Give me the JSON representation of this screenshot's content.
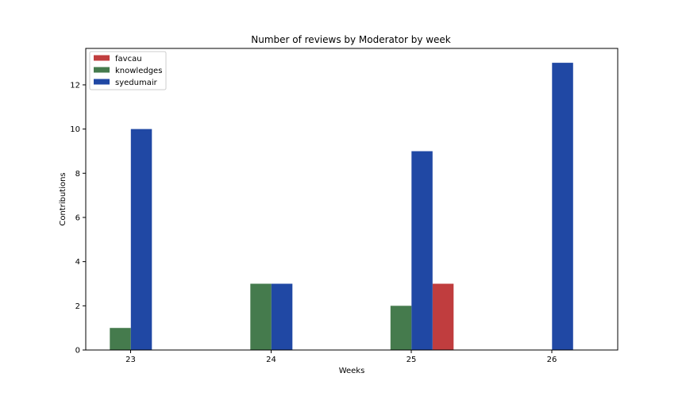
{
  "chart_data": {
    "type": "bar",
    "title": "Number of reviews by Moderator by week",
    "xlabel": "Weeks",
    "ylabel": "Contributions",
    "categories": [
      "23",
      "24",
      "25",
      "26"
    ],
    "series": [
      {
        "name": "favcau",
        "color": "#c03d3e",
        "values": [
          0,
          0,
          3,
          0
        ]
      },
      {
        "name": "knowledges",
        "color": "#457b4d",
        "values": [
          1,
          3,
          2,
          0
        ]
      },
      {
        "name": "syedumair",
        "color": "#2048a4",
        "values": [
          10,
          3,
          9,
          13
        ]
      }
    ],
    "ylim": [
      0,
      13.65
    ],
    "yticks": [
      0,
      2,
      4,
      6,
      8,
      10,
      12
    ],
    "legend_position": "top-left",
    "grid": false
  }
}
